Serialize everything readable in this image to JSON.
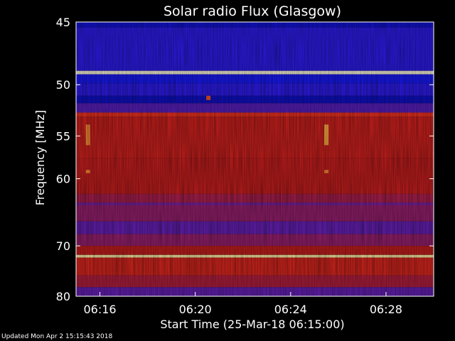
{
  "chart_data": {
    "type": "heatmap",
    "title": "Solar radio Flux (Glasgow)",
    "xlabel": "Start Time (25-Mar-18 06:15:00)",
    "ylabel": "Frequency [MHz]",
    "x_tick_labels": [
      "06:16",
      "06:20",
      "06:24",
      "06:28"
    ],
    "x_tick_minutes": [
      1,
      5,
      9,
      13
    ],
    "xlim_minutes": [
      0,
      15
    ],
    "y_ticks": [
      45,
      50,
      55,
      60,
      70,
      80
    ],
    "ylim": [
      45,
      80
    ],
    "y_scale": "reciprocal",
    "grid": false,
    "colormap": [
      "#00007a",
      "#1a1aff",
      "#7a22a6",
      "#c81e1e",
      "#ff3a1e",
      "#ffe650",
      "#ffffff"
    ],
    "frequency_bands": [
      {
        "from": 45.0,
        "to": 45.4,
        "level": 0.12
      },
      {
        "from": 45.4,
        "to": 48.8,
        "level": 0.2
      },
      {
        "from": 48.8,
        "to": 49.1,
        "level": 0.97
      },
      {
        "from": 49.1,
        "to": 49.9,
        "level": 0.16
      },
      {
        "from": 49.9,
        "to": 51.0,
        "level": 0.2
      },
      {
        "from": 51.0,
        "to": 51.7,
        "level": 0.1
      },
      {
        "from": 51.7,
        "to": 52.6,
        "level": 0.28
      },
      {
        "from": 52.6,
        "to": 53.0,
        "level": 0.62
      },
      {
        "from": 53.0,
        "to": 57.5,
        "level": 0.52
      },
      {
        "from": 57.5,
        "to": 62.0,
        "level": 0.5
      },
      {
        "from": 62.0,
        "to": 63.2,
        "level": 0.44
      },
      {
        "from": 63.2,
        "to": 63.6,
        "level": 0.34
      },
      {
        "from": 63.6,
        "to": 66.0,
        "level": 0.4
      },
      {
        "from": 66.0,
        "to": 68.0,
        "level": 0.3
      },
      {
        "from": 68.0,
        "to": 70.0,
        "level": 0.4
      },
      {
        "from": 70.0,
        "to": 71.6,
        "level": 0.5
      },
      {
        "from": 71.6,
        "to": 72.1,
        "level": 0.92
      },
      {
        "from": 72.1,
        "to": 75.5,
        "level": 0.55
      },
      {
        "from": 75.5,
        "to": 78.0,
        "level": 0.46
      },
      {
        "from": 78.0,
        "to": 80.0,
        "level": 0.3
      }
    ],
    "bursts": [
      {
        "time_minutes": 0.5,
        "from": 53.8,
        "to": 56.0,
        "level": 0.75
      },
      {
        "time_minutes": 0.5,
        "from": 58.9,
        "to": 59.3,
        "level": 0.75
      },
      {
        "time_minutes": 10.5,
        "from": 53.8,
        "to": 56.0,
        "level": 0.78
      },
      {
        "time_minutes": 10.5,
        "from": 58.9,
        "to": 59.3,
        "level": 0.75
      },
      {
        "time_minutes": 5.55,
        "from": 51.0,
        "to": 51.4,
        "level": 0.7
      }
    ]
  },
  "footer": {
    "updated_text": "Updated Mon Apr  2 15:15:43 2018"
  }
}
